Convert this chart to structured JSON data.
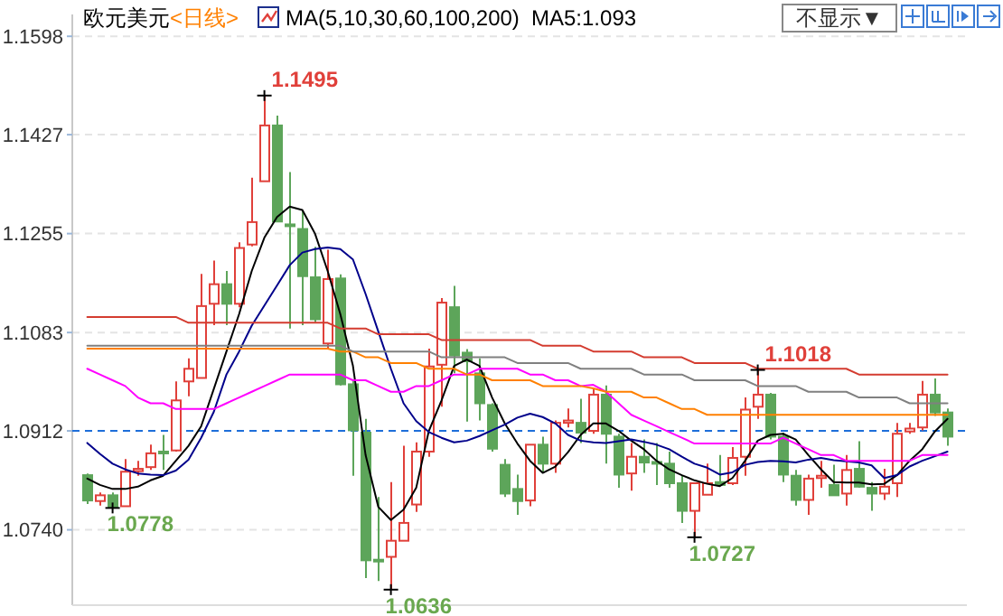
{
  "chart_data": {
    "type": "candlestick",
    "title": "欧元美元",
    "subtitle": "<日线>",
    "legend_title": "MA(5,10,30,60,100,200)",
    "categories": [
      null,
      null,
      null,
      null,
      null,
      null,
      null,
      null,
      null,
      null,
      null,
      null,
      null,
      null,
      null,
      null,
      null,
      null,
      null,
      null,
      null,
      null,
      null,
      null,
      null,
      null,
      null,
      null,
      null,
      null,
      null,
      null,
      null,
      null,
      null,
      null,
      null,
      null,
      null,
      null,
      null,
      null,
      null,
      null,
      null,
      null,
      null,
      null,
      null,
      null,
      null,
      null,
      null,
      null,
      null,
      null,
      null,
      null,
      null,
      null,
      null,
      null,
      null,
      null,
      null,
      null,
      null,
      null,
      null
    ],
    "ohlc": [
      [
        1.0835,
        1.0838,
        1.0785,
        1.0791
      ],
      [
        1.079,
        1.0805,
        1.0782,
        1.08
      ],
      [
        1.08,
        1.0805,
        1.0778,
        1.0779
      ],
      [
        1.0781,
        1.0863,
        1.0781,
        1.0841
      ],
      [
        1.0842,
        1.086,
        1.0834,
        1.0846
      ],
      [
        1.0849,
        1.0888,
        1.0844,
        1.0873
      ],
      [
        1.0876,
        1.0905,
        1.0844,
        1.0874
      ],
      [
        1.0878,
        1.0998,
        1.0876,
        1.0965
      ],
      [
        1.0998,
        1.1038,
        1.0972,
        1.102
      ],
      [
        1.1004,
        1.1185,
        1.1003,
        1.1129
      ],
      [
        1.1133,
        1.1208,
        1.1096,
        1.1167
      ],
      [
        1.1167,
        1.119,
        1.1096,
        1.1133
      ],
      [
        1.1133,
        1.124,
        1.1127,
        1.123
      ],
      [
        1.1236,
        1.1352,
        1.1233,
        1.1275
      ],
      [
        1.1346,
        1.1495,
        1.1346,
        1.1443
      ],
      [
        1.1443,
        1.146,
        1.1276,
        1.1276
      ],
      [
        1.1271,
        1.1362,
        1.109,
        1.1268
      ],
      [
        1.1263,
        1.1294,
        1.1096,
        1.1181
      ],
      [
        1.1179,
        1.1232,
        1.1101,
        1.1106
      ],
      [
        1.1064,
        1.1227,
        1.1054,
        1.1176
      ],
      [
        1.1177,
        1.1184,
        1.0991,
        1.0993
      ],
      [
        1.0993,
        1.1001,
        1.0834,
        1.0913
      ],
      [
        1.0909,
        1.0933,
        1.0656,
        1.0687
      ],
      [
        1.0688,
        1.0797,
        1.0651,
        1.0685
      ],
      [
        1.0693,
        1.0823,
        1.0636,
        1.0721
      ],
      [
        1.0721,
        1.0886,
        1.0721,
        1.0752
      ],
      [
        1.0784,
        1.0892,
        1.0771,
        1.0876
      ],
      [
        1.0876,
        1.1055,
        1.0867,
        1.1024
      ],
      [
        1.1027,
        1.1143,
        1.0954,
        1.1135
      ],
      [
        1.1127,
        1.1164,
        1.1012,
        1.1043
      ],
      [
        1.1048,
        1.1054,
        1.0928,
        1.1033
      ],
      [
        1.1012,
        1.1038,
        1.093,
        1.096
      ],
      [
        1.0957,
        1.096,
        1.0876,
        1.0881
      ],
      [
        1.0853,
        1.0863,
        1.0797,
        1.0803
      ],
      [
        1.0811,
        1.0836,
        1.0766,
        1.079
      ],
      [
        1.0791,
        1.0888,
        1.0781,
        1.0888
      ],
      [
        1.0888,
        1.0902,
        1.0839,
        1.0855
      ],
      [
        1.0855,
        1.093,
        1.0839,
        1.0926
      ],
      [
        1.0926,
        1.0951,
        1.0918,
        1.093
      ],
      [
        1.0926,
        1.0968,
        1.0891,
        1.0909
      ],
      [
        1.0912,
        1.0986,
        1.0907,
        1.0975
      ],
      [
        1.0975,
        1.0991,
        1.0855,
        1.0907
      ],
      [
        1.0902,
        1.0907,
        1.0813,
        1.0836
      ],
      [
        1.0838,
        1.0891,
        1.0808,
        1.0867
      ],
      [
        1.0867,
        1.0897,
        1.0839,
        1.0857
      ],
      [
        1.0858,
        1.0891,
        1.0818,
        1.0857
      ],
      [
        1.0855,
        1.0876,
        1.0813,
        1.0821
      ],
      [
        1.0821,
        1.0834,
        1.0752,
        1.0773
      ],
      [
        1.0773,
        1.0821,
        1.0727,
        1.0821
      ],
      [
        1.0801,
        1.0855,
        1.0801,
        1.0821
      ],
      [
        1.0823,
        1.087,
        1.0818,
        1.0818
      ],
      [
        1.0821,
        1.0884,
        1.0818,
        1.0865
      ],
      [
        1.0867,
        1.097,
        1.0834,
        1.0949
      ],
      [
        1.0954,
        1.1018,
        1.0933,
        1.0975
      ],
      [
        1.0975,
        1.0978,
        1.0897,
        1.0902
      ],
      [
        1.0902,
        1.0909,
        1.0823,
        1.0836
      ],
      [
        1.0834,
        1.0844,
        1.0782,
        1.0792
      ],
      [
        1.0792,
        1.0836,
        1.0766,
        1.0829
      ],
      [
        1.083,
        1.086,
        1.0813,
        1.0834
      ],
      [
        1.0818,
        1.0853,
        1.08,
        1.08
      ],
      [
        1.0803,
        1.087,
        1.0782,
        1.0844
      ],
      [
        1.0846,
        1.0894,
        1.0813,
        1.0815
      ],
      [
        1.0813,
        1.0823,
        1.0773,
        1.0803
      ],
      [
        1.0803,
        1.0846,
        1.0792,
        1.0815
      ],
      [
        1.0821,
        1.0926,
        1.0797,
        1.0907
      ],
      [
        1.0911,
        1.0926,
        1.0907,
        1.0916
      ],
      [
        1.0918,
        1.0999,
        1.0913,
        1.0975
      ],
      [
        1.0975,
        1.1003,
        1.0938,
        1.0944
      ],
      [
        1.0944,
        1.0951,
        1.0886,
        1.0902
      ]
    ],
    "series": [
      {
        "type": "line",
        "color": "#000000",
        "values": [
          1.0829,
          1.0818,
          1.0811,
          1.0811,
          1.0815,
          1.0826,
          1.0834,
          1.086,
          1.0886,
          1.092,
          1.0985,
          1.105,
          1.1115,
          1.119,
          1.1248,
          1.1284,
          1.1302,
          1.1296,
          1.1255,
          1.119,
          1.1115,
          1.1025,
          1.087,
          1.078,
          1.0757,
          1.0775,
          1.0813,
          1.0912,
          1.0965,
          1.1025,
          1.1036,
          1.1025,
          1.097,
          1.0925,
          1.089,
          1.086,
          1.0839,
          1.085,
          1.0875,
          1.0905,
          1.0925,
          1.0925,
          1.0912,
          1.0895,
          1.088,
          1.086,
          1.0845,
          1.0835,
          1.0826,
          1.082,
          1.0816,
          1.083,
          1.086,
          1.0895,
          1.0905,
          1.0907,
          1.0897,
          1.087,
          1.0845,
          1.0823,
          1.0822,
          1.0822,
          1.0819,
          1.082,
          1.0835,
          1.086,
          1.088,
          1.0911,
          1.0933
        ]
      },
      {
        "type": "line",
        "color": "#00008b",
        "values": [
          1.0891,
          1.0872,
          1.0855,
          1.0845,
          1.0838,
          1.0836,
          1.0835,
          1.0843,
          1.0862,
          1.09,
          1.0945,
          1.101,
          1.105,
          1.1095,
          1.113,
          1.1165,
          1.12,
          1.1222,
          1.1228,
          1.1231,
          1.1228,
          1.121,
          1.115,
          1.1085,
          1.102,
          1.096,
          1.0929,
          1.091,
          1.09,
          1.0892,
          1.0895,
          1.0903,
          1.0913,
          1.0923,
          1.0935,
          1.0942,
          1.0936,
          1.0925,
          1.0905,
          1.0895,
          1.0892,
          1.0891,
          1.0894,
          1.0897,
          1.0893,
          1.0888,
          1.088,
          1.0867,
          1.0855,
          1.0848,
          1.0836,
          1.084,
          1.0853,
          1.0858,
          1.086,
          1.0859,
          1.0857,
          1.0862,
          1.0865,
          1.0861,
          1.0859,
          1.0857,
          1.0852,
          1.083,
          1.0835,
          1.085,
          1.086,
          1.0868,
          1.0876
        ]
      },
      {
        "type": "line",
        "color": "#ff00ff",
        "values": [
          1.102,
          1.101,
          1.1,
          1.099,
          1.097,
          1.096,
          1.096,
          1.095,
          1.095,
          1.095,
          1.095,
          1.096,
          1.097,
          1.098,
          1.099,
          1.1,
          1.101,
          1.101,
          1.101,
          1.101,
          1.101,
          1.1,
          1.1,
          1.099,
          1.098,
          1.098,
          1.099,
          1.099,
          1.1,
          1.101,
          1.101,
          1.102,
          1.102,
          1.102,
          1.102,
          1.101,
          1.101,
          1.1,
          1.1,
          1.099,
          1.0992,
          1.098,
          1.096,
          1.094,
          1.093,
          1.092,
          1.091,
          1.09,
          1.089,
          1.089,
          1.089,
          1.089,
          1.089,
          1.089,
          1.089,
          1.09,
          1.089,
          1.088,
          1.087,
          1.087,
          1.086,
          1.086,
          1.086,
          1.086,
          1.086,
          1.086,
          1.087,
          1.087,
          1.087
        ]
      },
      {
        "type": "line",
        "color": "#ff8000",
        "values": [
          1.1055,
          1.1055,
          1.1055,
          1.1055,
          1.1055,
          1.1055,
          1.1055,
          1.1055,
          1.1055,
          1.1055,
          1.1055,
          1.1055,
          1.1055,
          1.1055,
          1.1055,
          1.1055,
          1.1055,
          1.1055,
          1.1055,
          1.1055,
          1.105,
          1.105,
          1.104,
          1.104,
          1.103,
          1.103,
          1.103,
          1.102,
          1.102,
          1.102,
          1.101,
          1.101,
          1.1,
          1.1,
          1.1,
          1.1,
          1.099,
          1.099,
          1.099,
          1.099,
          1.0986,
          1.098,
          1.098,
          1.098,
          1.097,
          1.097,
          1.096,
          1.095,
          1.095,
          1.094,
          1.094,
          1.094,
          1.094,
          1.094,
          1.094,
          1.094,
          1.094,
          1.094,
          1.094,
          1.094,
          1.094,
          1.094,
          1.094,
          1.094,
          1.094,
          1.094,
          1.094,
          1.094,
          1.094
        ]
      },
      {
        "type": "line",
        "color": "#808080",
        "values": [
          1.106,
          1.106,
          1.106,
          1.106,
          1.106,
          1.106,
          1.106,
          1.106,
          1.106,
          1.106,
          1.106,
          1.106,
          1.106,
          1.106,
          1.106,
          1.106,
          1.106,
          1.106,
          1.106,
          1.106,
          1.106,
          1.105,
          1.105,
          1.105,
          1.105,
          1.105,
          1.105,
          1.105,
          1.104,
          1.104,
          1.104,
          1.104,
          1.104,
          1.104,
          1.103,
          1.103,
          1.103,
          1.103,
          1.103,
          1.102,
          1.102,
          1.102,
          1.102,
          1.102,
          1.101,
          1.101,
          1.101,
          1.101,
          1.1,
          1.1,
          1.1,
          1.1,
          1.1,
          1.099,
          1.099,
          1.099,
          1.099,
          1.098,
          1.098,
          1.098,
          1.098,
          1.097,
          1.097,
          1.097,
          1.097,
          1.096,
          1.096,
          1.096,
          1.096
        ]
      },
      {
        "type": "line",
        "color": "#d43c30",
        "values": [
          1.111,
          1.111,
          1.111,
          1.111,
          1.111,
          1.111,
          1.111,
          1.111,
          1.11,
          1.11,
          1.11,
          1.11,
          1.11,
          1.11,
          1.11,
          1.11,
          1.11,
          1.11,
          1.11,
          1.11,
          1.109,
          1.109,
          1.109,
          1.108,
          1.108,
          1.108,
          1.108,
          1.108,
          1.107,
          1.107,
          1.107,
          1.107,
          1.107,
          1.107,
          1.107,
          1.107,
          1.106,
          1.106,
          1.106,
          1.106,
          1.105,
          1.105,
          1.105,
          1.105,
          1.104,
          1.104,
          1.104,
          1.104,
          1.103,
          1.103,
          1.103,
          1.103,
          1.103,
          1.102,
          1.102,
          1.102,
          1.102,
          1.102,
          1.102,
          1.102,
          1.102,
          1.101,
          1.101,
          1.101,
          1.101,
          1.101,
          1.101,
          1.101,
          1.101
        ]
      }
    ],
    "ylim": [
      1.0609,
      1.1636
    ],
    "yticks": [
      1.1598,
      1.1427,
      1.1255,
      1.1083,
      1.0912,
      {
        "value": 1.074,
        "label": "1.0740"
      }
    ],
    "grid": "y",
    "ref_lines": [
      {
        "axis": "y",
        "value": 1.0912,
        "color": "#1e6fd9",
        "line_style": "dashed"
      }
    ],
    "annotations": [
      "MA5:1.093",
      "不显示▼",
      "1.0778",
      "1.1495",
      "1.0636",
      "1.0727",
      "1.1018"
    ]
  }
}
